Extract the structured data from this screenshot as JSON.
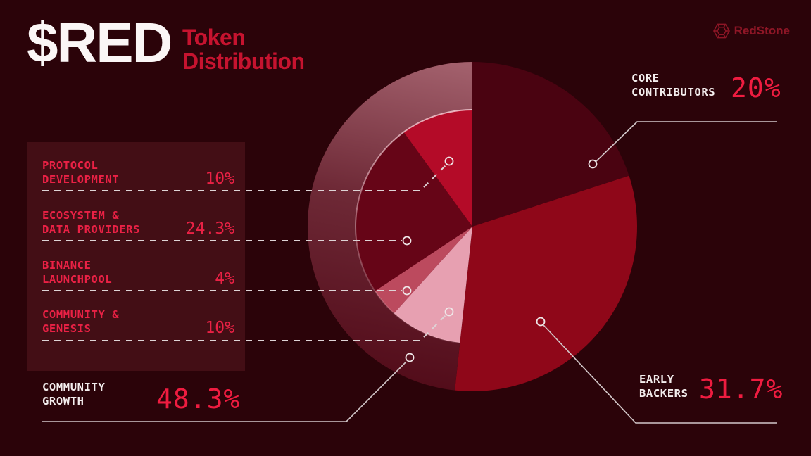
{
  "header": {
    "token": "$RED",
    "subtitle_line1": "Token",
    "subtitle_line2": "Distribution"
  },
  "brand": {
    "name": "RedStone"
  },
  "colors": {
    "background": "#2b0309",
    "accent_red": "#ea2145",
    "value_red": "#ef1c40",
    "white_text": "#f3eded",
    "subtitle_red": "#c6132f",
    "brand_red": "#8e1626",
    "leader_line": "#d3c8ca",
    "dashed_line": "#ded4d6"
  },
  "chart_data": {
    "type": "pie",
    "title": "$RED Token Distribution",
    "unit": "%",
    "direction": "clockwise",
    "start_angle_deg": 0,
    "main_series": [
      {
        "name": "Core Contributors",
        "value": 20,
        "color": "#4a0311"
      },
      {
        "name": "Early Backers",
        "value": 31.7,
        "color": "#8f0719"
      },
      {
        "name": "Community Growth",
        "value": 48.3,
        "color": "#4a0311"
      }
    ],
    "community_growth_breakdown": [
      {
        "name": "Community & Genesis",
        "value": 10,
        "color": "#e7a0b1"
      },
      {
        "name": "Binance Launchpool",
        "value": 4,
        "color": "#bc4a5e"
      },
      {
        "name": "Ecosystem & Data Providers",
        "value": 24.3,
        "color": "#660517"
      },
      {
        "name": "Protocol Development",
        "value": 10,
        "color": "#b40b28"
      }
    ],
    "legend_position": "callouts",
    "notes": "Breakdown renders as an inner pie over the Community Growth arc ending at 12 o'clock; a translucent highlight band covers the Community Growth outer ring."
  },
  "callouts": {
    "panel_rows": [
      {
        "line1": "PROTOCOL",
        "line2": "DEVELOPMENT",
        "value": "10%"
      },
      {
        "line1": "ECOSYSTEM &",
        "line2": "DATA PROVIDERS",
        "value": "24.3%"
      },
      {
        "line1": "BINANCE",
        "line2": "LAUNCHPOOL",
        "value": "4%"
      },
      {
        "line1": "COMMUNITY &",
        "line2": "GENESIS",
        "value": "10%"
      }
    ],
    "community_growth": {
      "line1": "COMMUNITY",
      "line2": "GROWTH",
      "value": "48.3%"
    },
    "core_contributors": {
      "line1": "CORE",
      "line2": "CONTRIBUTORS",
      "value": "20%"
    },
    "early_backers": {
      "line1": "EARLY",
      "line2": "BACKERS",
      "value": "31.7%"
    }
  }
}
